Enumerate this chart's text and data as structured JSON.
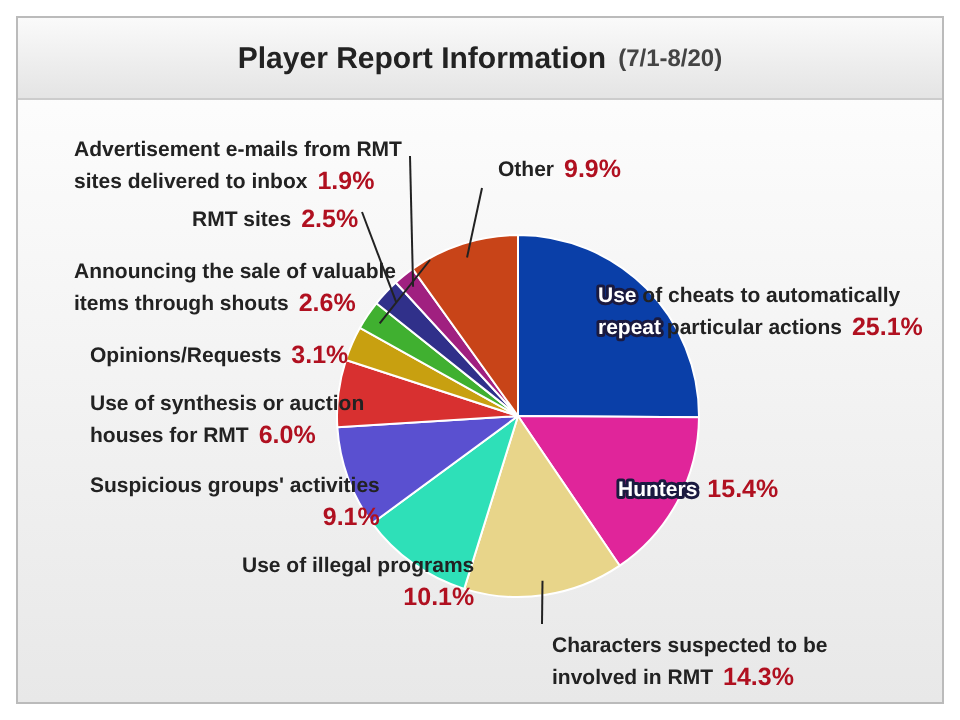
{
  "chart_data": {
    "type": "pie",
    "title": "Player Report Information",
    "subtitle": "(7/1-8/20)",
    "categories": [
      "Use of cheats to automatically repeat particular actions",
      "Hunters",
      "Characters suspected to be involved in RMT",
      "Use of illegal programs",
      "Suspicious groups' activities",
      "Use of synthesis or auction houses for RMT",
      "Opinions/Requests",
      "Announcing the sale of valuable items through shouts",
      "RMT sites",
      "Advertisement e-mails from RMT sites delivered to inbox",
      "Other"
    ],
    "values": [
      25.1,
      15.4,
      14.3,
      10.1,
      9.1,
      6.0,
      3.1,
      2.6,
      2.5,
      1.9,
      9.9
    ],
    "value_labels": [
      "25.1%",
      "15.4%",
      "14.3%",
      "10.1%",
      "9.1%",
      "6.0%",
      "3.1%",
      "2.6%",
      "2.5%",
      "1.9%",
      "9.9%"
    ],
    "colors": [
      "#0a3fa8",
      "#e0259a",
      "#e8d58a",
      "#2ee0b8",
      "#5a50d0",
      "#d83030",
      "#c8a010",
      "#40b030",
      "#30308a",
      "#a02080",
      "#c84418"
    ],
    "legend": false
  }
}
